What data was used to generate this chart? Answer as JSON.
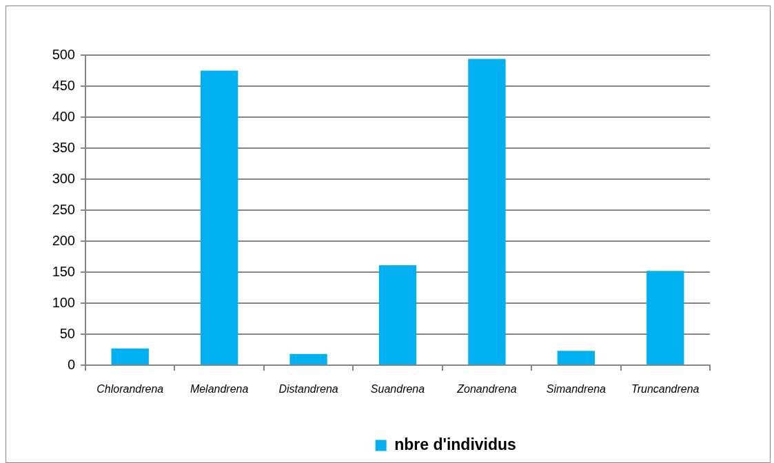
{
  "chart_data": {
    "type": "bar",
    "categories": [
      "Chlorandrena",
      "Melandrena",
      "Distandrena",
      "Suandrena",
      "Zonandrena",
      "Simandrena",
      "Truncandrena"
    ],
    "series": [
      {
        "name": "nbre d'individus",
        "color": "#00b0f0",
        "values": [
          27,
          475,
          18,
          161,
          494,
          23,
          152
        ]
      }
    ],
    "ylim": [
      0,
      500
    ],
    "yticks": [
      0,
      50,
      100,
      150,
      200,
      250,
      300,
      350,
      400,
      450,
      500
    ],
    "grid": "y",
    "legend": "bottom"
  }
}
